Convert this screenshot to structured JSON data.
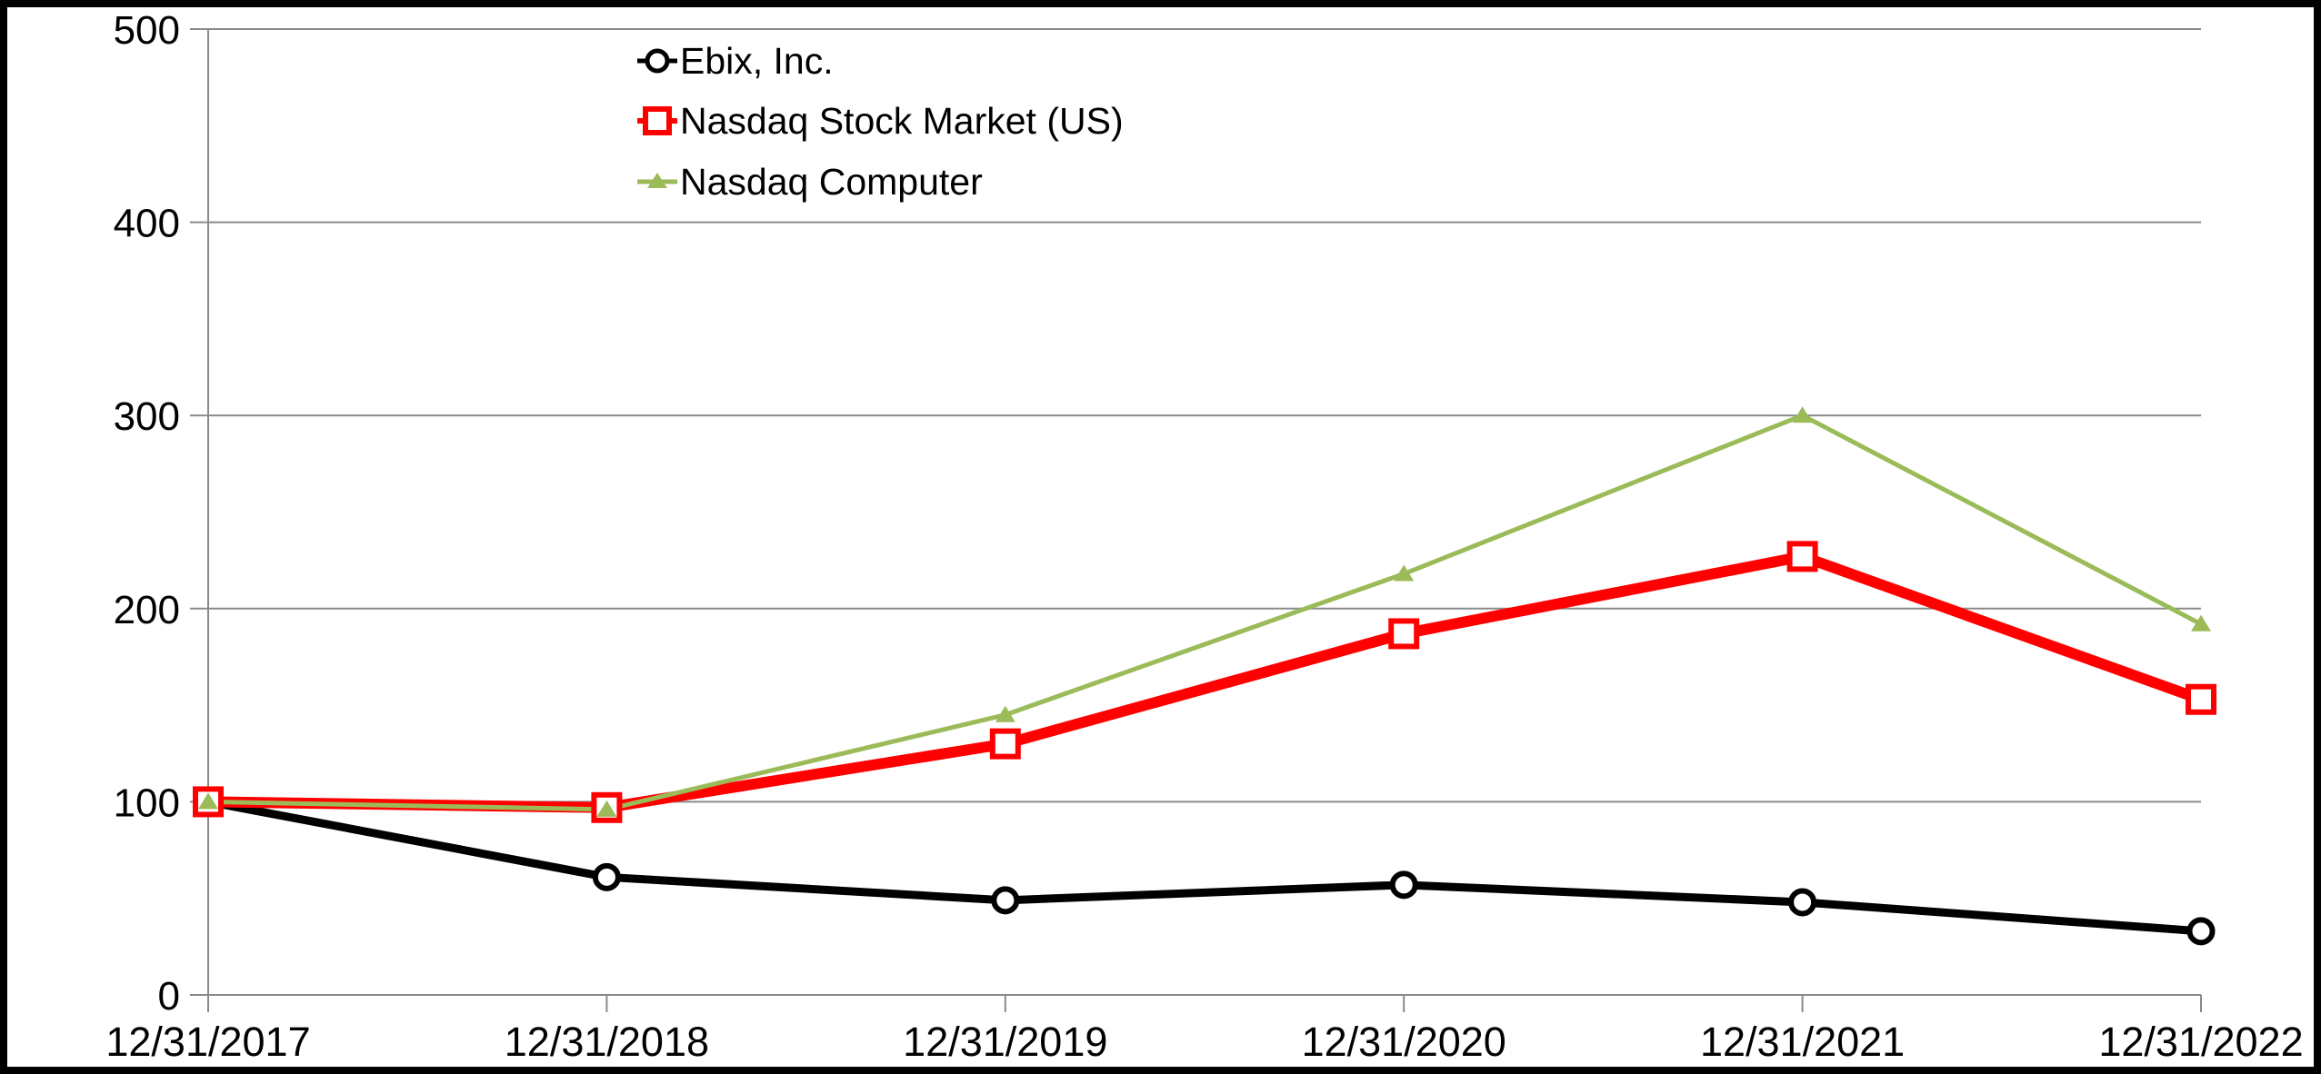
{
  "chart_data": {
    "type": "line",
    "title": "",
    "categories": [
      "12/31/2017",
      "12/31/2018",
      "12/31/2019",
      "12/31/2020",
      "12/31/2021",
      "12/31/2022"
    ],
    "series": [
      {
        "name": "Ebix, Inc.",
        "color": "#000000",
        "marker": "circle",
        "line_width": 9,
        "values": [
          100,
          61,
          49,
          57,
          48,
          33
        ]
      },
      {
        "name": "Nasdaq Stock Market (US)",
        "color": "#FF0000",
        "marker": "square",
        "line_width": 12,
        "values": [
          100,
          97,
          130,
          187,
          227,
          153
        ]
      },
      {
        "name": "Nasdaq Computer",
        "color": "#9BBB59",
        "marker": "triangle",
        "line_width": 5,
        "values": [
          100,
          96,
          145,
          218,
          300,
          192
        ]
      }
    ],
    "xlabel": "",
    "ylabel": "",
    "ylim": [
      0,
      500
    ],
    "yticks": [
      0,
      100,
      200,
      300,
      400,
      500
    ],
    "grid": "horizontal",
    "legend_position": "top-center-inside"
  },
  "colors": {
    "background": "#FFFFFF",
    "frame_border": "#000000",
    "grid": "#8A8A8A",
    "text": "#000000",
    "marker_fill": "#FFFFFF"
  }
}
